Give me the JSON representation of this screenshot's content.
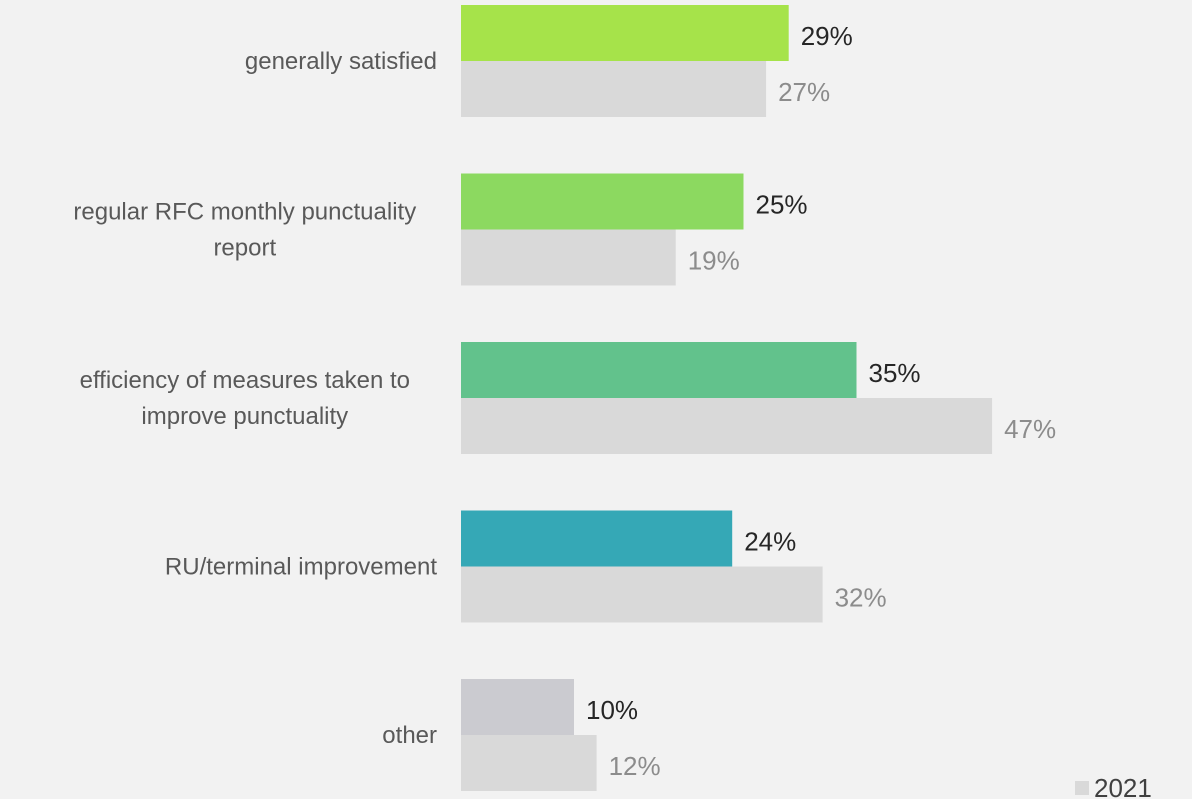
{
  "chart_data": {
    "type": "bar",
    "orientation": "horizontal",
    "categories": [
      [
        "generally satisfied"
      ],
      [
        "regular RFC monthly punctuality",
        "report"
      ],
      [
        "efficiency of measures taken to",
        "improve punctuality"
      ],
      [
        "RU/terminal improvement"
      ],
      [
        "other"
      ]
    ],
    "series": [
      {
        "values": [
          29,
          25,
          35,
          24,
          10
        ],
        "labels": [
          "29%",
          "25%",
          "35%",
          "24%",
          "10%"
        ],
        "colors": [
          "#a6e34a",
          "#8cd960",
          "#62c28c",
          "#35a8b6",
          "#cbcbd0"
        ]
      },
      {
        "name": "2021",
        "values": [
          27,
          19,
          47,
          32,
          12
        ],
        "labels": [
          "27%",
          "19%",
          "47%",
          "32%",
          "12%"
        ],
        "color": "#d9d9d9"
      }
    ],
    "xlim": [
      0,
      100
    ],
    "grid": false,
    "axes_visible": false,
    "legend": {
      "position": "bottom-right",
      "entries": [
        "2021"
      ]
    }
  }
}
